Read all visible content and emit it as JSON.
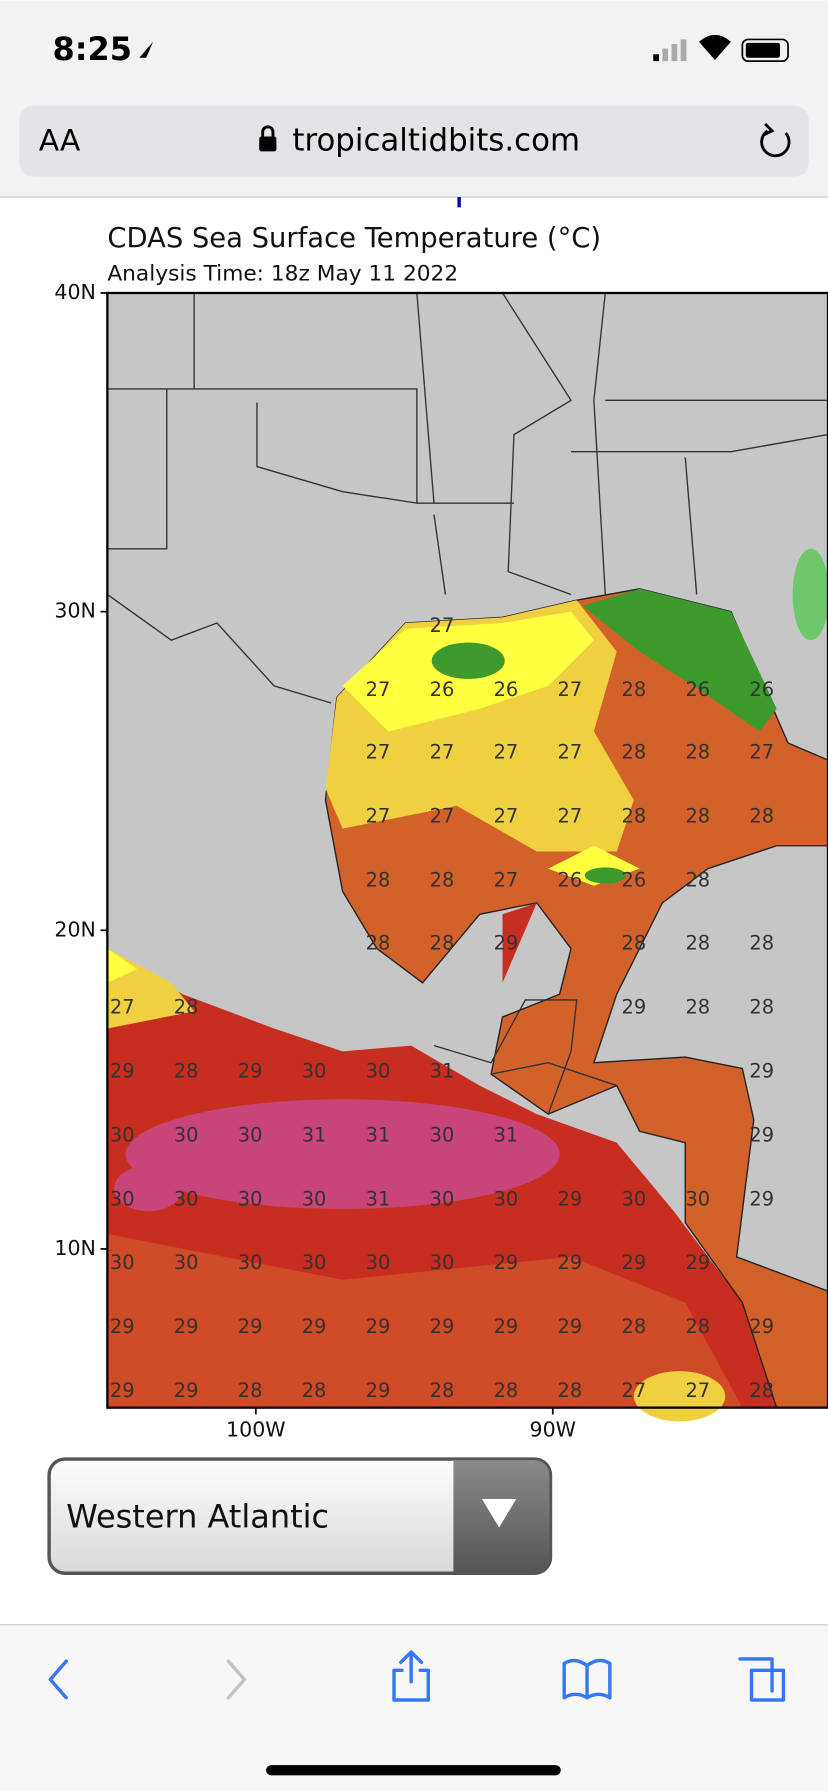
{
  "status_bar": {
    "time": "8:25"
  },
  "address_bar": {
    "text_size": "AA",
    "url": "tropicaltidbits.com"
  },
  "map": {
    "title": "CDAS Sea Surface Temperature (°C)",
    "subtitle": "Analysis Time: 18z May 11 2022",
    "lat_labels": [
      "40N",
      "30N",
      "20N",
      "10N"
    ],
    "lon_labels": [
      "100W",
      "90W"
    ],
    "labels": [
      [
        null,
        null,
        null,
        null,
        null,
        27,
        null,
        null,
        null,
        null,
        null
      ],
      [
        null,
        null,
        null,
        null,
        27,
        26,
        26,
        27,
        28,
        26,
        26
      ],
      [
        null,
        null,
        null,
        null,
        27,
        27,
        27,
        27,
        28,
        28,
        27
      ],
      [
        null,
        null,
        null,
        null,
        27,
        27,
        27,
        27,
        28,
        28,
        28
      ],
      [
        null,
        null,
        null,
        null,
        28,
        28,
        27,
        26,
        26,
        28,
        null
      ],
      [
        null,
        null,
        null,
        null,
        28,
        28,
        29,
        null,
        28,
        28,
        28
      ],
      [
        27,
        28,
        null,
        null,
        null,
        null,
        null,
        null,
        29,
        28,
        28
      ],
      [
        29,
        28,
        29,
        30,
        30,
        31,
        null,
        null,
        null,
        null,
        29
      ],
      [
        30,
        30,
        30,
        31,
        31,
        30,
        31,
        null,
        null,
        null,
        29
      ],
      [
        30,
        30,
        30,
        30,
        31,
        30,
        30,
        29,
        30,
        30,
        29
      ],
      [
        30,
        30,
        30,
        30,
        30,
        30,
        29,
        29,
        29,
        29,
        null
      ],
      [
        29,
        29,
        29,
        29,
        29,
        29,
        29,
        29,
        28,
        28,
        29
      ],
      [
        29,
        29,
        28,
        28,
        29,
        28,
        28,
        28,
        27,
        27,
        28
      ]
    ]
  },
  "region_select": {
    "selected": "Western Atlantic"
  }
}
